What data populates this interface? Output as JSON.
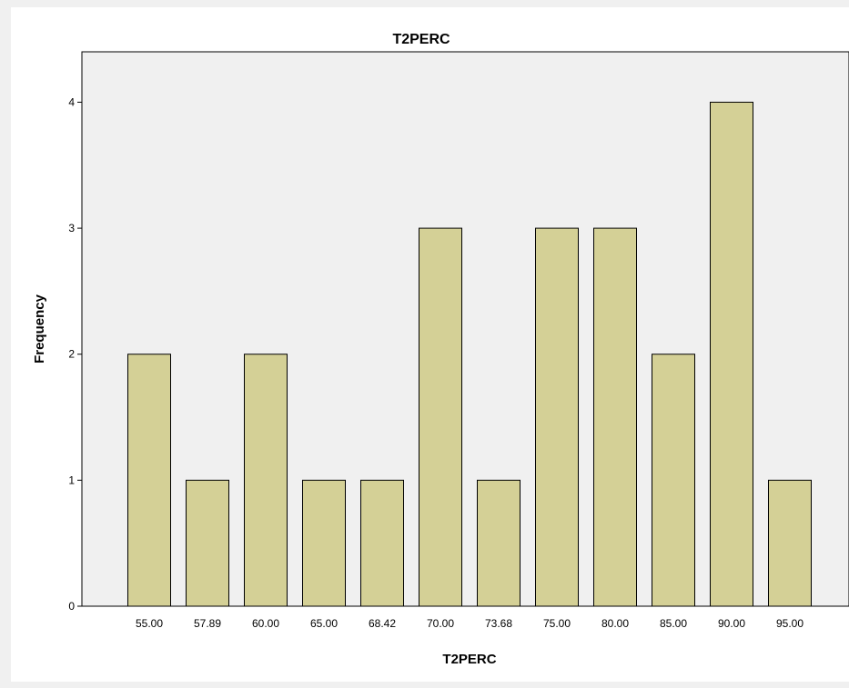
{
  "chart_data": {
    "type": "bar",
    "title": "T2PERC",
    "xlabel": "T2PERC",
    "ylabel": "Frequency",
    "categories": [
      "55.00",
      "57.89",
      "60.00",
      "65.00",
      "68.42",
      "70.00",
      "73.68",
      "75.00",
      "80.00",
      "85.00",
      "90.00",
      "95.00"
    ],
    "values": [
      2,
      1,
      2,
      1,
      1,
      3,
      1,
      3,
      3,
      2,
      4,
      1
    ],
    "ylim": [
      0,
      4.4
    ],
    "yticks": [
      0,
      1,
      2,
      3,
      4
    ],
    "grid": false,
    "legend": "none",
    "colors": {
      "bar_fill": "#d4d096",
      "bar_stroke": "#000000",
      "plot_background": "#f0f0f0",
      "panel_background": "#ffffff"
    }
  }
}
